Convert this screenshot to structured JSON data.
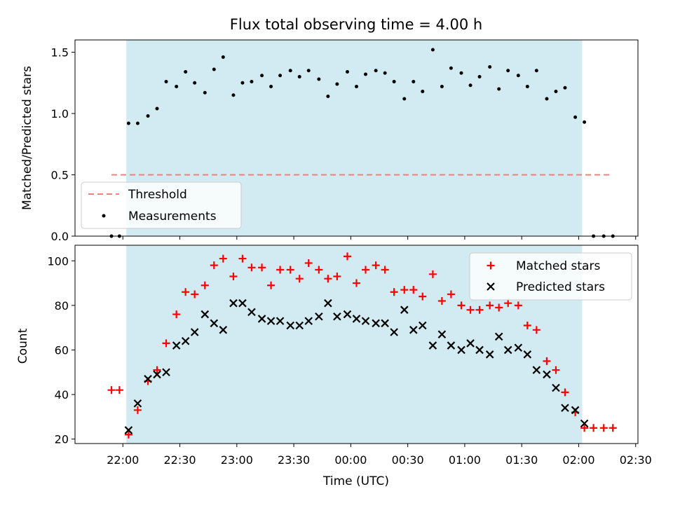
{
  "colors": {
    "shade": "#add8e6",
    "threshold": "#f08080",
    "matched": "#ff0000",
    "predicted": "#000000",
    "points": "#000000"
  },
  "chart_data": [
    {
      "type": "scatter",
      "title": "Flux total observing time = 4.00 h",
      "xlabel": "",
      "ylabel": "Matched/Predicted stars",
      "x_unit": "time (UTC), plotted in hours relative to midnight; ticks labeled HH:MM",
      "xlim_hours": [
        -2.42,
        2.52
      ],
      "ylim": [
        0,
        1.6
      ],
      "y_ticks": [
        0.0,
        0.5,
        1.0,
        1.5
      ],
      "y_tick_labels": [
        "0.0",
        "0.5",
        "1.0",
        "1.5"
      ],
      "grid": false,
      "legend": {
        "placement": "lower-left",
        "entries": [
          "Threshold",
          "Measurements"
        ]
      },
      "observing_window_hours": [
        -1.97,
        2.03
      ],
      "threshold": {
        "name": "Threshold",
        "value": 0.5,
        "x_range_hours": [
          -2.1,
          2.28
        ]
      },
      "series": [
        {
          "name": "Measurements",
          "points": [
            [
              -2.1,
              0.0
            ],
            [
              -2.03,
              0.0
            ],
            [
              -1.95,
              0.92
            ],
            [
              -1.87,
              0.92
            ],
            [
              -1.78,
              0.98
            ],
            [
              -1.7,
              1.04
            ],
            [
              -1.62,
              1.26
            ],
            [
              -1.53,
              1.22
            ],
            [
              -1.45,
              1.34
            ],
            [
              -1.37,
              1.25
            ],
            [
              -1.28,
              1.17
            ],
            [
              -1.2,
              1.36
            ],
            [
              -1.12,
              1.46
            ],
            [
              -1.03,
              1.15
            ],
            [
              -0.95,
              1.25
            ],
            [
              -0.87,
              1.26
            ],
            [
              -0.78,
              1.31
            ],
            [
              -0.7,
              1.22
            ],
            [
              -0.62,
              1.31
            ],
            [
              -0.53,
              1.35
            ],
            [
              -0.45,
              1.3
            ],
            [
              -0.37,
              1.35
            ],
            [
              -0.28,
              1.28
            ],
            [
              -0.2,
              1.14
            ],
            [
              -0.12,
              1.24
            ],
            [
              -0.03,
              1.34
            ],
            [
              0.05,
              1.22
            ],
            [
              0.13,
              1.32
            ],
            [
              0.22,
              1.35
            ],
            [
              0.3,
              1.33
            ],
            [
              0.38,
              1.26
            ],
            [
              0.47,
              1.12
            ],
            [
              0.55,
              1.26
            ],
            [
              0.63,
              1.18
            ],
            [
              0.72,
              1.52
            ],
            [
              0.8,
              1.22
            ],
            [
              0.88,
              1.37
            ],
            [
              0.97,
              1.33
            ],
            [
              1.05,
              1.23
            ],
            [
              1.13,
              1.3
            ],
            [
              1.22,
              1.38
            ],
            [
              1.3,
              1.2
            ],
            [
              1.38,
              1.35
            ],
            [
              1.47,
              1.31
            ],
            [
              1.55,
              1.22
            ],
            [
              1.63,
              1.35
            ],
            [
              1.72,
              1.12
            ],
            [
              1.8,
              1.18
            ],
            [
              1.88,
              1.21
            ],
            [
              1.97,
              0.97
            ],
            [
              2.05,
              0.93
            ],
            [
              2.13,
              0.0
            ],
            [
              2.22,
              0.0
            ],
            [
              2.3,
              0.0
            ]
          ]
        }
      ]
    },
    {
      "type": "scatter",
      "title": "",
      "xlabel": "Time (UTC)",
      "ylabel": "Count",
      "xlim_hours": [
        -2.42,
        2.52
      ],
      "x_ticks_hours": [
        -2.0,
        -1.5,
        -1.0,
        -0.5,
        0.0,
        0.5,
        1.0,
        1.5,
        2.0,
        2.5
      ],
      "x_tick_labels": [
        "22:00",
        "22:30",
        "23:00",
        "23:30",
        "00:00",
        "00:30",
        "01:00",
        "01:30",
        "02:00",
        "02:30"
      ],
      "ylim": [
        18,
        107
      ],
      "y_ticks": [
        20,
        40,
        60,
        80,
        100
      ],
      "y_tick_labels": [
        "20",
        "40",
        "60",
        "80",
        "100"
      ],
      "grid": false,
      "legend": {
        "placement": "upper-right",
        "entries": [
          "Matched stars",
          "Predicted stars"
        ]
      },
      "observing_window_hours": [
        -1.97,
        2.03
      ],
      "series": [
        {
          "name": "Matched stars",
          "marker": "plus",
          "points": [
            [
              -2.1,
              42
            ],
            [
              -2.03,
              42
            ],
            [
              -1.95,
              22
            ],
            [
              -1.87,
              33
            ],
            [
              -1.78,
              46
            ],
            [
              -1.7,
              51
            ],
            [
              -1.62,
              63
            ],
            [
              -1.53,
              76
            ],
            [
              -1.45,
              86
            ],
            [
              -1.37,
              85
            ],
            [
              -1.28,
              89
            ],
            [
              -1.2,
              98
            ],
            [
              -1.12,
              101
            ],
            [
              -1.03,
              93
            ],
            [
              -0.95,
              101
            ],
            [
              -0.87,
              97
            ],
            [
              -0.78,
              97
            ],
            [
              -0.7,
              89
            ],
            [
              -0.62,
              96
            ],
            [
              -0.53,
              96
            ],
            [
              -0.45,
              92
            ],
            [
              -0.37,
              99
            ],
            [
              -0.28,
              96
            ],
            [
              -0.2,
              92
            ],
            [
              -0.12,
              93
            ],
            [
              -0.03,
              102
            ],
            [
              0.05,
              90
            ],
            [
              0.13,
              96
            ],
            [
              0.22,
              98
            ],
            [
              0.3,
              96
            ],
            [
              0.38,
              86
            ],
            [
              0.47,
              87
            ],
            [
              0.55,
              87
            ],
            [
              0.63,
              84
            ],
            [
              0.72,
              94
            ],
            [
              0.8,
              82
            ],
            [
              0.88,
              85
            ],
            [
              0.97,
              80
            ],
            [
              1.05,
              78
            ],
            [
              1.13,
              78
            ],
            [
              1.22,
              80
            ],
            [
              1.3,
              79
            ],
            [
              1.38,
              81
            ],
            [
              1.47,
              80
            ],
            [
              1.55,
              71
            ],
            [
              1.63,
              69
            ],
            [
              1.72,
              55
            ],
            [
              1.8,
              51
            ],
            [
              1.88,
              41
            ],
            [
              1.97,
              32
            ],
            [
              2.05,
              25
            ],
            [
              2.13,
              25
            ],
            [
              2.22,
              25
            ],
            [
              2.3,
              25
            ]
          ]
        },
        {
          "name": "Predicted stars",
          "marker": "x",
          "points": [
            [
              -1.95,
              24
            ],
            [
              -1.87,
              36
            ],
            [
              -1.78,
              47
            ],
            [
              -1.7,
              49
            ],
            [
              -1.62,
              50
            ],
            [
              -1.53,
              62
            ],
            [
              -1.45,
              64
            ],
            [
              -1.37,
              68
            ],
            [
              -1.28,
              76
            ],
            [
              -1.2,
              72
            ],
            [
              -1.12,
              69
            ],
            [
              -1.03,
              81
            ],
            [
              -0.95,
              81
            ],
            [
              -0.87,
              77
            ],
            [
              -0.78,
              74
            ],
            [
              -0.7,
              73
            ],
            [
              -0.62,
              73
            ],
            [
              -0.53,
              71
            ],
            [
              -0.45,
              71
            ],
            [
              -0.37,
              73
            ],
            [
              -0.28,
              75
            ],
            [
              -0.2,
              81
            ],
            [
              -0.12,
              75
            ],
            [
              -0.03,
              76
            ],
            [
              0.05,
              74
            ],
            [
              0.13,
              73
            ],
            [
              0.22,
              72
            ],
            [
              0.3,
              72
            ],
            [
              0.38,
              68
            ],
            [
              0.47,
              78
            ],
            [
              0.55,
              69
            ],
            [
              0.63,
              71
            ],
            [
              0.72,
              62
            ],
            [
              0.8,
              67
            ],
            [
              0.88,
              62
            ],
            [
              0.97,
              60
            ],
            [
              1.05,
              63
            ],
            [
              1.13,
              60
            ],
            [
              1.22,
              58
            ],
            [
              1.3,
              66
            ],
            [
              1.38,
              60
            ],
            [
              1.47,
              61
            ],
            [
              1.55,
              58
            ],
            [
              1.63,
              51
            ],
            [
              1.72,
              49
            ],
            [
              1.8,
              43
            ],
            [
              1.88,
              34
            ],
            [
              1.97,
              33
            ],
            [
              2.05,
              27
            ]
          ]
        }
      ]
    }
  ]
}
